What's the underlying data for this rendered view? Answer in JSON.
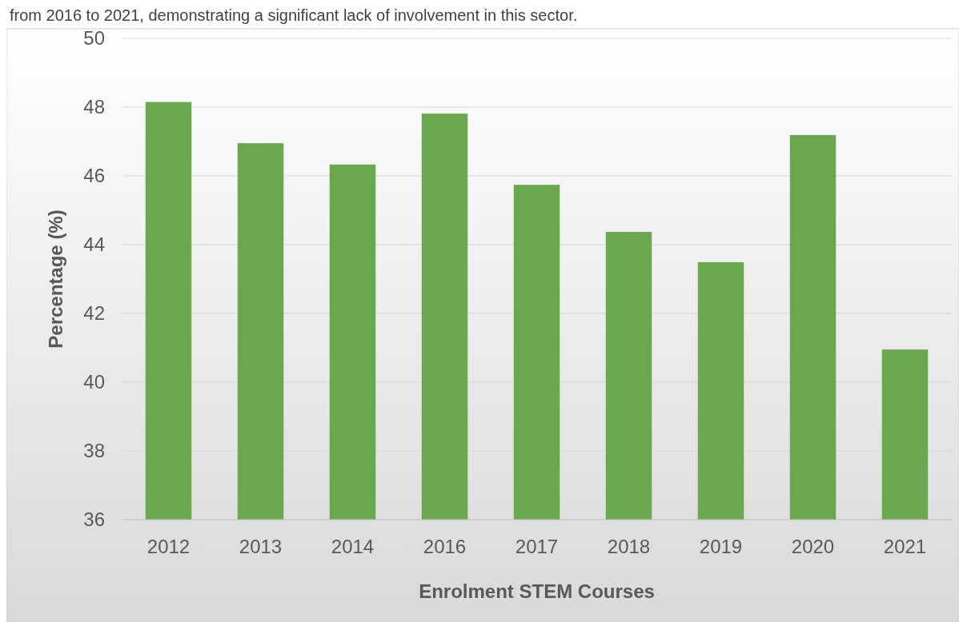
{
  "chart_data": {
    "type": "bar",
    "xlabel": "Enrolment STEM Courses",
    "ylabel": "Percentage (%)",
    "annotations": [
      "from 2016 to 2021, demonstrating a significant lack of involvement in this sector."
    ],
    "categories": [
      "2012",
      "2013",
      "2014",
      "2016",
      "2017",
      "2018",
      "2019",
      "2020",
      "2021"
    ],
    "values": [
      48.15,
      46.95,
      46.33,
      47.81,
      45.74,
      44.37,
      43.49,
      47.19,
      40.95
    ],
    "color": "#6aa84f",
    "ylim": [
      36,
      50
    ],
    "yticks": [
      36,
      38,
      40,
      42,
      44,
      46,
      48,
      50
    ],
    "grid": "y"
  }
}
